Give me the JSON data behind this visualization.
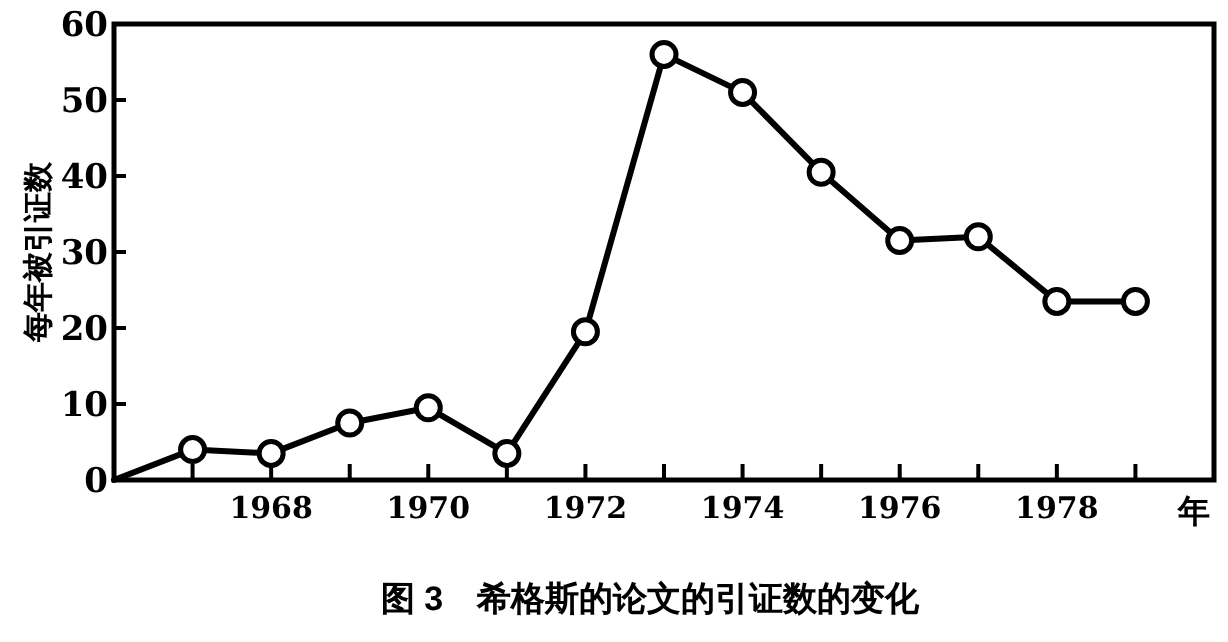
{
  "chart_data": {
    "type": "line",
    "title": "图 3　希格斯的论文的引证数的变化",
    "ylabel": "每年被引证数",
    "xlabel": "年",
    "series": [
      {
        "x": [
          1966,
          1967
        ],
        "values": [
          0,
          4
        ],
        "color": "#000000"
      },
      {
        "x": [
          1967,
          1968,
          1969,
          1970,
          1971,
          1972,
          1973,
          1974,
          1975,
          1976,
          1977,
          1978,
          1979
        ],
        "values": [
          4,
          3.5,
          7.5,
          9.5,
          3.5,
          19.5,
          56,
          51,
          40.5,
          31.5,
          32,
          23.5,
          23.5
        ],
        "color": "#000000",
        "marker": "circle"
      }
    ],
    "xlim": [
      1966,
      1980
    ],
    "ylim": [
      0,
      60
    ],
    "xticks": [
      {
        "value": 1967,
        "label": null
      },
      1968,
      {
        "value": 1969,
        "label": null
      },
      1970,
      {
        "value": 1971,
        "label": null
      },
      1972,
      {
        "value": 1973,
        "label": null
      },
      1974,
      {
        "value": 1975,
        "label": null
      },
      1976,
      {
        "value": 1977,
        "label": null
      },
      1978,
      {
        "value": 1979,
        "label": null
      }
    ],
    "yticks": [
      0,
      10,
      20,
      30,
      40,
      50,
      60
    ],
    "grid": false,
    "line_style": "solid"
  }
}
